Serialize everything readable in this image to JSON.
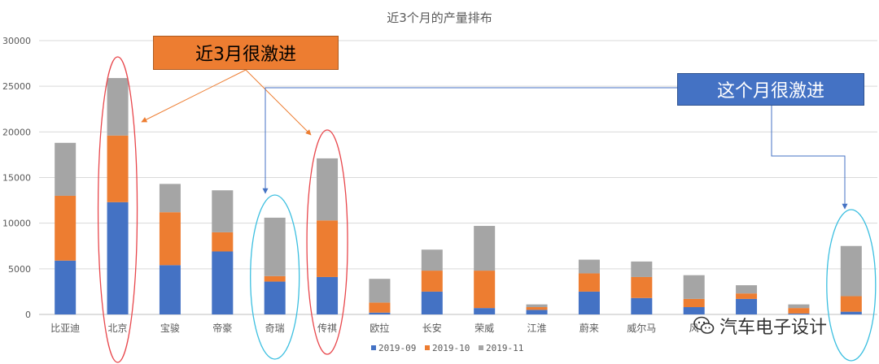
{
  "chart_data": {
    "type": "bar",
    "stacked": true,
    "title": "近3个月的产量排布",
    "categories": [
      "比亚迪",
      "北京",
      "宝骏",
      "帝豪",
      "奇瑞",
      "传祺",
      "欧拉",
      "长安",
      "荣威",
      "江淮",
      "蔚来",
      "威尔马",
      "风",
      "",
      "",
      ""
    ],
    "series": [
      {
        "name": "2019-09",
        "color": "#4472C4",
        "values": [
          5900,
          12300,
          5400,
          6900,
          3600,
          4100,
          200,
          2500,
          700,
          500,
          2500,
          1800,
          800,
          1700,
          100,
          300
        ]
      },
      {
        "name": "2019-10",
        "color": "#ED7D31",
        "values": [
          7100,
          7300,
          5800,
          2100,
          600,
          6200,
          1100,
          2300,
          4100,
          300,
          2000,
          2300,
          900,
          600,
          600,
          1700
        ]
      },
      {
        "name": "2019-11",
        "color": "#A5A5A5",
        "values": [
          5800,
          6300,
          3100,
          4600,
          6400,
          6800,
          2600,
          2300,
          4900,
          300,
          1500,
          1700,
          2600,
          900,
          400,
          5500
        ]
      }
    ],
    "ylim": [
      0,
      30000
    ],
    "yticks": [
      "0",
      "5000",
      "10000",
      "15000",
      "20000",
      "25000",
      "30000"
    ],
    "grid": true,
    "legend": "bottom"
  },
  "annotations": {
    "orange_callout": "近3月很激进",
    "blue_callout": "这个月很激进"
  },
  "watermark": {
    "text": "汽车电子设计",
    "icon": "wechat-icon"
  }
}
